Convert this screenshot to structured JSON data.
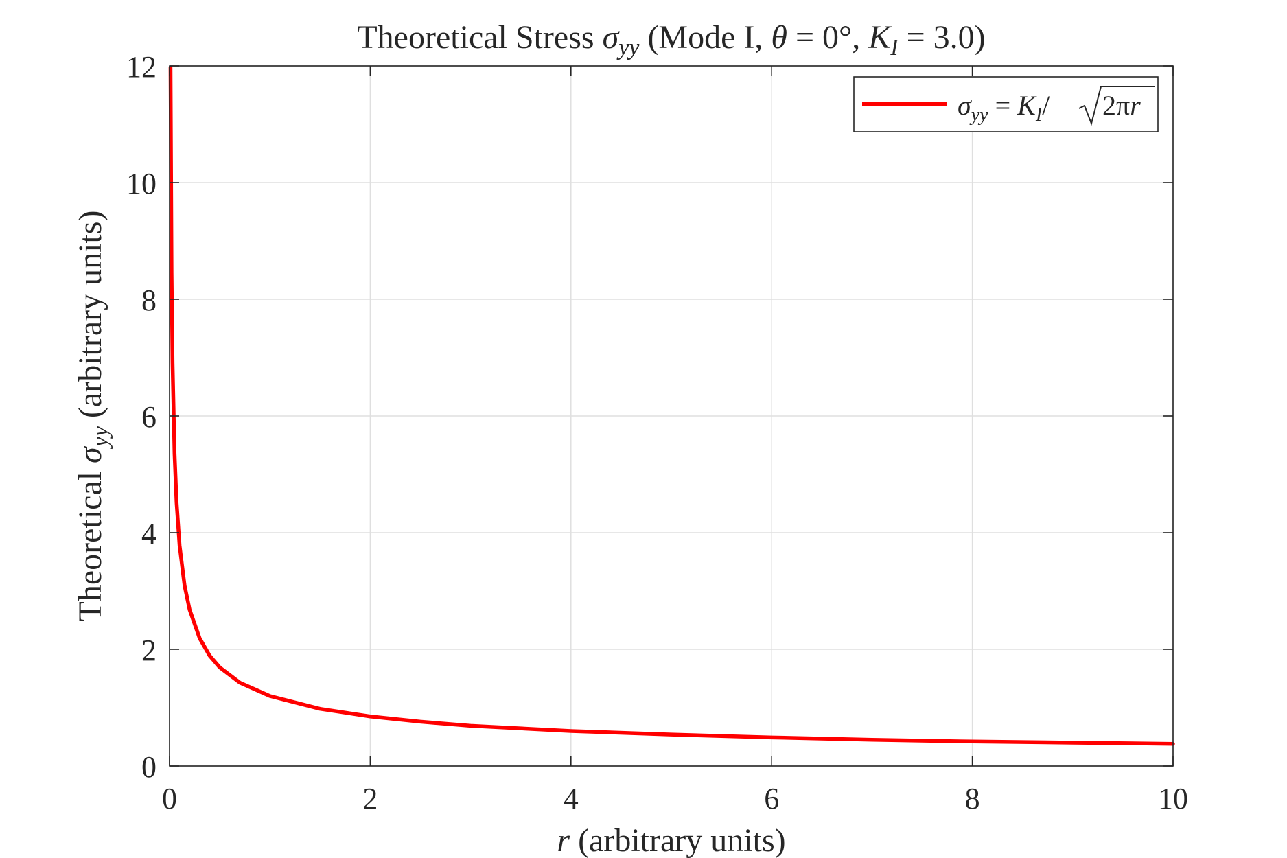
{
  "chart_data": {
    "type": "line",
    "title": {
      "prefix": "Theoretical Stress ",
      "sigma": "σ",
      "yy": "yy",
      "paren_open": " (Mode I, ",
      "theta": "θ",
      "eq_zero": " = 0°, ",
      "K": "K",
      "I": "I",
      "eq_value": " = 3.0)"
    },
    "xlabel": {
      "r": "r",
      "rest": " (arbitrary units)"
    },
    "ylabel": {
      "prefix": "Theoretical ",
      "sigma": "σ",
      "yy": "yy",
      "rest": " (arbitrary units)"
    },
    "xlim": [
      0,
      10
    ],
    "ylim": [
      0,
      12
    ],
    "xticks": [
      0,
      2,
      4,
      6,
      8,
      10
    ],
    "yticks": [
      0,
      2,
      4,
      6,
      8,
      10,
      12
    ],
    "x_tick_labels": [
      "0",
      "2",
      "4",
      "6",
      "8",
      "10"
    ],
    "y_tick_labels": [
      "0",
      "2",
      "4",
      "6",
      "8",
      "10",
      "12"
    ],
    "grid": true,
    "legend_position": "top-right",
    "legend": {
      "sigma": "σ",
      "yy": "yy",
      "eq": " = ",
      "K": "K",
      "I": "I",
      "slash": "/ ",
      "two_pi": "2π",
      "r": "r"
    },
    "K_I": 3.0,
    "series": [
      {
        "name": "σyy = KI/ √(2πr)",
        "color": "#ff0000",
        "x": [
          0.01,
          0.02,
          0.03,
          0.05,
          0.07,
          0.1,
          0.15,
          0.2,
          0.3,
          0.4,
          0.5,
          0.7,
          1.0,
          1.5,
          2.0,
          2.5,
          3.0,
          4.0,
          5.0,
          6.0,
          7.0,
          8.0,
          9.0,
          10.0
        ],
        "values": [
          11.97,
          8.46,
          6.91,
          5.35,
          4.52,
          3.78,
          3.09,
          2.68,
          2.19,
          1.89,
          1.69,
          1.43,
          1.2,
          0.98,
          0.85,
          0.76,
          0.69,
          0.6,
          0.54,
          0.49,
          0.45,
          0.42,
          0.4,
          0.38
        ]
      }
    ]
  },
  "colors": {
    "line": "#ff0000",
    "axis": "#262626",
    "grid": "#dfdfdf"
  }
}
